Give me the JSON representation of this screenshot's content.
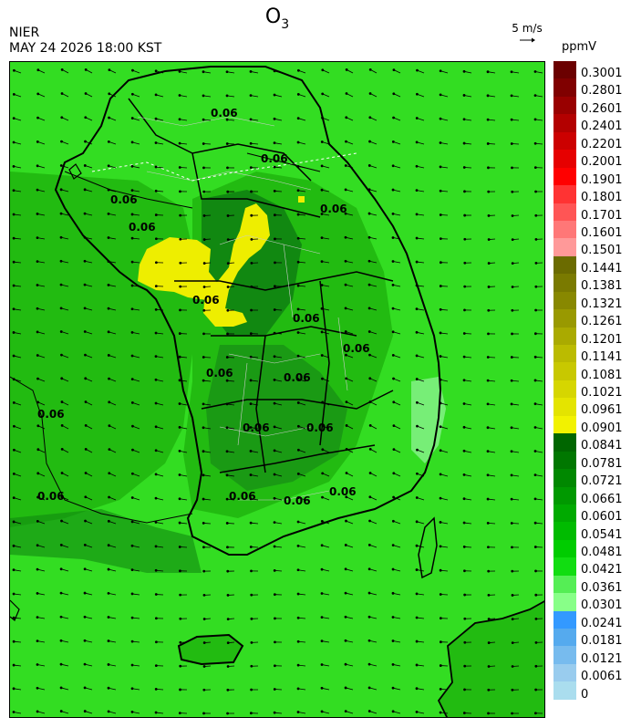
{
  "header": {
    "title_main": "O",
    "title_sub": "3",
    "agency": "NIER",
    "datetime": "MAY 24 2026 18:00 KST",
    "wind_reference": "5 m/s",
    "unit": "ppmV"
  },
  "map": {
    "contour_labels": [
      "0.06",
      "0.06",
      "0.06",
      "0.06",
      "0.06",
      "0.06",
      "0.06",
      "0.06",
      "0.06",
      "0.06",
      "0.06",
      "0.06",
      "0.06",
      "0.06",
      "0.06",
      "0.06",
      "0.06"
    ],
    "colors": {
      "background_green": "#33dd22",
      "mid_green": "#22bb11",
      "dark_green": "#118811",
      "high_yellow": "#eeee00",
      "light_green": "#77ee77",
      "coastline": "#000000",
      "admin_boundary": "#cccccc"
    }
  },
  "legend": {
    "labels": [
      "0.3001",
      "0.2801",
      "0.2601",
      "0.2401",
      "0.2201",
      "0.2001",
      "0.1901",
      "0.1801",
      "0.1701",
      "0.1601",
      "0.1501",
      "0.1441",
      "0.1381",
      "0.1321",
      "0.1261",
      "0.1201",
      "0.1141",
      "0.1081",
      "0.1021",
      "0.0961",
      "0.0901",
      "0.0841",
      "0.0781",
      "0.0721",
      "0.0661",
      "0.0601",
      "0.0541",
      "0.0481",
      "0.0421",
      "0.0361",
      "0.0301",
      "0.0241",
      "0.0181",
      "0.0121",
      "0.0061",
      "0"
    ],
    "colors": [
      "#6b0000",
      "#800000",
      "#990000",
      "#b30000",
      "#cc0000",
      "#e60000",
      "#ff0000",
      "#ff3333",
      "#ff5555",
      "#ff7777",
      "#ff9999",
      "#6b6b00",
      "#7a7a00",
      "#888800",
      "#999900",
      "#aaaa00",
      "#bbbb00",
      "#c8c800",
      "#d6d600",
      "#e4e400",
      "#f2f200",
      "#006600",
      "#007700",
      "#008800",
      "#009900",
      "#00aa00",
      "#00bb00",
      "#00cc00",
      "#11dd11",
      "#55ee55",
      "#88ff88",
      "#3399ff",
      "#55aaee",
      "#77bbee",
      "#99ccee",
      "#aaddee"
    ]
  }
}
